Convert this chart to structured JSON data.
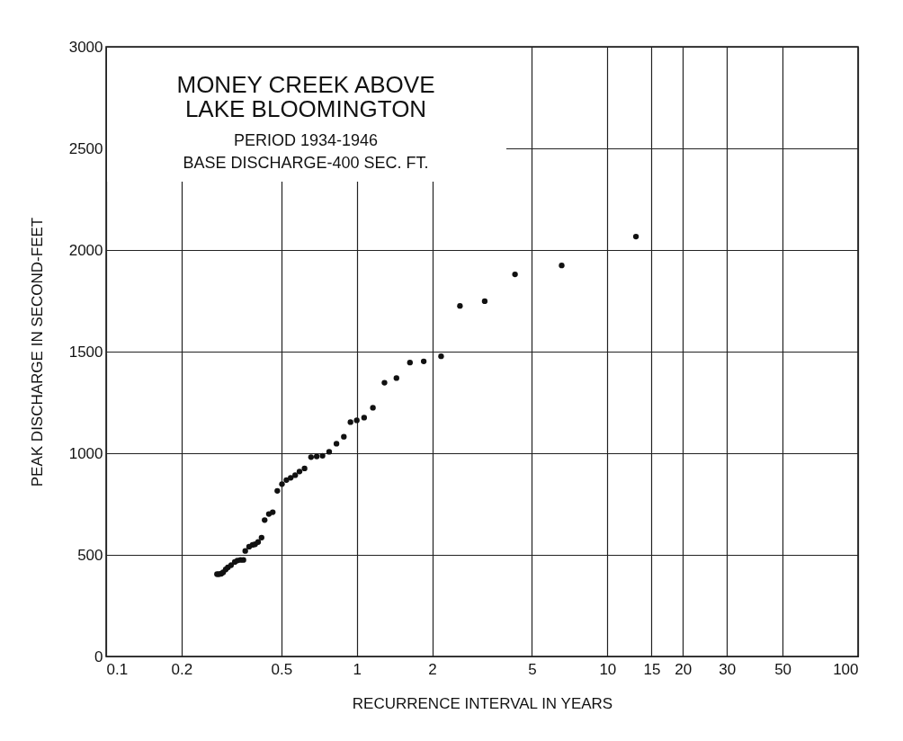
{
  "chart_data": {
    "type": "scatter",
    "title": "MONEY CREEK ABOVE\nLAKE BLOOMINGTON",
    "subtitle": "PERIOD 1934-1946",
    "annotations": [
      "BASE DISCHARGE-400 SEC. FT."
    ],
    "xlabel": "RECURRENCE INTERVAL IN YEARS",
    "ylabel": "PEAK DISCHARGE IN SECOND-FEET",
    "x": [
      0.277,
      0.282,
      0.288,
      0.293,
      0.3,
      0.306,
      0.315,
      0.326,
      0.334,
      0.344,
      0.353,
      0.359,
      0.372,
      0.384,
      0.393,
      0.404,
      0.417,
      0.429,
      0.446,
      0.462,
      0.482,
      0.503,
      0.524,
      0.545,
      0.568,
      0.591,
      0.619,
      0.657,
      0.692,
      0.73,
      0.776,
      0.83,
      0.888,
      0.944,
      1.0,
      1.07,
      1.16,
      1.29,
      1.44,
      1.63,
      1.85,
      2.17,
      2.58,
      3.24,
      4.28,
      6.57,
      13.0
    ],
    "values": [
      405,
      405,
      407,
      414,
      428,
      438,
      449,
      465,
      472,
      475,
      475,
      519,
      540,
      549,
      552,
      563,
      585,
      671,
      701,
      710,
      815,
      848,
      868,
      879,
      892,
      910,
      925,
      981,
      984,
      987,
      1007,
      1047,
      1081,
      1153,
      1162,
      1175,
      1224,
      1347,
      1370,
      1446,
      1452,
      1477,
      1725,
      1748,
      1880,
      1924,
      2066
    ],
    "color": "#111111",
    "marker": "circle",
    "xlim": [
      0.1,
      100
    ],
    "xticks": [
      0.1,
      0.2,
      0.5,
      1,
      2,
      5,
      10,
      15,
      20,
      30,
      50,
      100
    ],
    "ylim": [
      0,
      3000
    ],
    "yticks": [
      0,
      500,
      1000,
      1500,
      2000,
      2500,
      3000
    ],
    "log": "x",
    "grid": true
  }
}
